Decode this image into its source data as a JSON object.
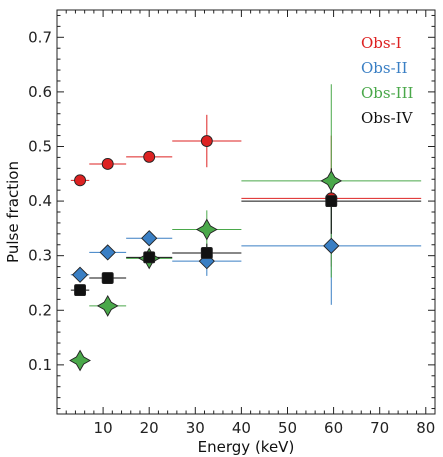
{
  "chart_data": {
    "type": "scatter",
    "title": "",
    "xlabel": "Energy (keV)",
    "ylabel": "Pulse fraction",
    "xlim": [
      0,
      82
    ],
    "ylim": [
      0.01,
      0.75
    ],
    "x_ticks": [
      10,
      20,
      30,
      40,
      50,
      60,
      70,
      80
    ],
    "y_ticks": [
      0.1,
      0.2,
      0.3,
      0.4,
      0.5,
      0.6,
      0.7
    ],
    "x_tick_labels": [
      "10",
      "20",
      "30",
      "40",
      "50",
      "60",
      "70",
      "80"
    ],
    "y_tick_labels": [
      "0.1",
      "0.2",
      "0.3",
      "0.4",
      "0.5",
      "0.6",
      "0.7"
    ],
    "legend_position": "top-right",
    "grid": false,
    "series": [
      {
        "name": "Obs-I",
        "color": "#dd2222",
        "marker": "circle",
        "points": [
          {
            "x": 5,
            "xlo": 3,
            "xhi": 7,
            "y": 0.438,
            "ylo": 0.432,
            "yhi": 0.444
          },
          {
            "x": 11,
            "xlo": 7,
            "xhi": 15,
            "y": 0.468,
            "ylo": 0.461,
            "yhi": 0.475
          },
          {
            "x": 20,
            "xlo": 15,
            "xhi": 25,
            "y": 0.481,
            "ylo": 0.471,
            "yhi": 0.49
          },
          {
            "x": 32.5,
            "xlo": 25,
            "xhi": 40,
            "y": 0.51,
            "ylo": 0.462,
            "yhi": 0.558
          },
          {
            "x": 59.5,
            "xlo": 40,
            "xhi": 79,
            "y": 0.405,
            "ylo": 0.28,
            "yhi": 0.52
          }
        ]
      },
      {
        "name": "Obs-II",
        "color": "#3a7fc4",
        "marker": "diamond",
        "points": [
          {
            "x": 5,
            "xlo": 3,
            "xhi": 7,
            "y": 0.265,
            "ylo": 0.258,
            "yhi": 0.272
          },
          {
            "x": 11,
            "xlo": 7,
            "xhi": 15,
            "y": 0.306,
            "ylo": 0.298,
            "yhi": 0.314
          },
          {
            "x": 20,
            "xlo": 15,
            "xhi": 25,
            "y": 0.332,
            "ylo": 0.321,
            "yhi": 0.343
          },
          {
            "x": 32.5,
            "xlo": 25,
            "xhi": 40,
            "y": 0.29,
            "ylo": 0.263,
            "yhi": 0.317
          },
          {
            "x": 59.5,
            "xlo": 40,
            "xhi": 79,
            "y": 0.318,
            "ylo": 0.21,
            "yhi": 0.425
          }
        ]
      },
      {
        "name": "Obs-III",
        "color": "#4aa84a",
        "marker": "star4",
        "points": [
          {
            "x": 5,
            "xlo": 3,
            "xhi": 7,
            "y": 0.108,
            "ylo": 0.102,
            "yhi": 0.114
          },
          {
            "x": 11,
            "xlo": 7,
            "xhi": 15,
            "y": 0.208,
            "ylo": 0.2,
            "yhi": 0.216
          },
          {
            "x": 20,
            "xlo": 15,
            "xhi": 25,
            "y": 0.295,
            "ylo": 0.286,
            "yhi": 0.304
          },
          {
            "x": 32.5,
            "xlo": 25,
            "xhi": 40,
            "y": 0.348,
            "ylo": 0.313,
            "yhi": 0.383
          },
          {
            "x": 59.5,
            "xlo": 40,
            "xhi": 79,
            "y": 0.437,
            "ylo": 0.26,
            "yhi": 0.614
          }
        ]
      },
      {
        "name": "Obs-IV",
        "color": "#111111",
        "marker": "square",
        "points": [
          {
            "x": 5,
            "xlo": 3,
            "xhi": 7,
            "y": 0.237,
            "ylo": 0.231,
            "yhi": 0.243
          },
          {
            "x": 11,
            "xlo": 7,
            "xhi": 15,
            "y": 0.259,
            "ylo": 0.252,
            "yhi": 0.266
          },
          {
            "x": 20,
            "xlo": 15,
            "xhi": 25,
            "y": 0.297,
            "ylo": 0.288,
            "yhi": 0.306
          },
          {
            "x": 32.5,
            "xlo": 25,
            "xhi": 40,
            "y": 0.305,
            "ylo": 0.288,
            "yhi": 0.322
          },
          {
            "x": 59.5,
            "xlo": 40,
            "xhi": 79,
            "y": 0.4,
            "ylo": 0.34,
            "yhi": 0.46
          }
        ]
      }
    ]
  }
}
